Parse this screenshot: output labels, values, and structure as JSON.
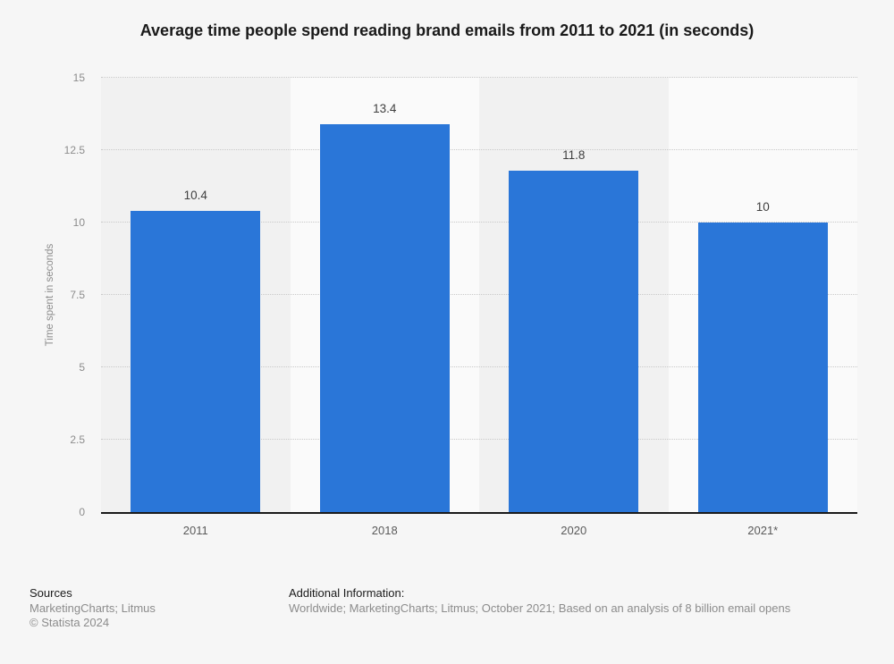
{
  "chart_data": {
    "type": "bar",
    "title": "Average time people spend reading brand emails from 2011 to 2021 (in seconds)",
    "xlabel": "",
    "ylabel": "Time spent in seconds",
    "categories": [
      "2011",
      "2018",
      "2020",
      "2021*"
    ],
    "values": [
      10.4,
      13.4,
      11.8,
      10
    ],
    "value_labels": [
      "10.4",
      "13.4",
      "11.8",
      "10"
    ],
    "ylim": [
      0,
      15
    ],
    "yticks": [
      0,
      2.5,
      5,
      7.5,
      10,
      12.5,
      15
    ],
    "grid": "horizontal-dotted",
    "legend": "none",
    "colors": {
      "bar": "#2a76d8",
      "band_odd": "#f1f1f1",
      "band_even": "#fafafa",
      "gridline": "#c9c9c9",
      "axis_line": "#1a1a1a",
      "tick_label": "#8c8c8c",
      "value_label": "#3f3f3f",
      "category_label": "#5a5a5a"
    }
  },
  "footer": {
    "sources_label": "Sources",
    "sources_value": "MarketingCharts; Litmus",
    "copyright": "© Statista 2024",
    "additional_label": "Additional Information:",
    "additional_value": "Worldwide; MarketingCharts; Litmus; October 2021; Based on an analysis of 8 billion email opens"
  }
}
